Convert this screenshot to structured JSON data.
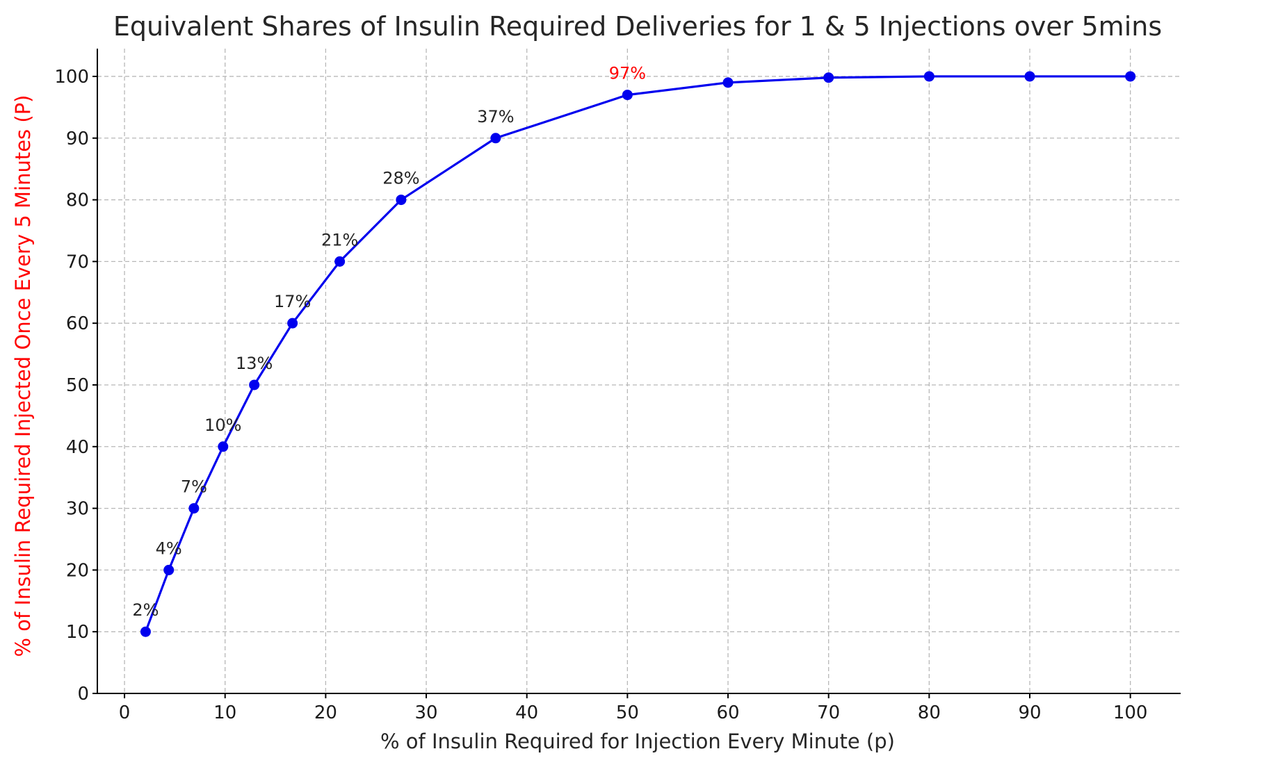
{
  "chart_data": {
    "type": "line",
    "title": "Equivalent Shares of Insulin Required Deliveries for 1 & 5 Injections over 5mins",
    "xlabel": "% of Insulin Required for Injection Every Minute (p)",
    "ylabel": "% of Insulin Required Injected Once Every 5 Minutes (P)",
    "xlim": [
      -2.7,
      105
    ],
    "ylim": [
      0,
      104.5
    ],
    "xticks": [
      0,
      10,
      20,
      30,
      40,
      50,
      60,
      70,
      80,
      90,
      100
    ],
    "yticks": [
      0,
      10,
      20,
      30,
      40,
      50,
      60,
      70,
      80,
      90,
      100
    ],
    "grid": true,
    "series": [
      {
        "color": "#0000ee",
        "x": [
          2.1,
          4.4,
          6.9,
          9.8,
          12.9,
          16.7,
          21.4,
          27.5,
          36.9,
          50,
          60,
          70,
          80,
          90,
          100
        ],
        "y": [
          10,
          20,
          30,
          40,
          50,
          60,
          70,
          80,
          90,
          97,
          99,
          99.8,
          100,
          100,
          100
        ]
      }
    ],
    "annotations": [
      {
        "text": "2%",
        "x": 2.1,
        "y": 10,
        "color": "#262626"
      },
      {
        "text": "4%",
        "x": 4.4,
        "y": 20,
        "color": "#262626"
      },
      {
        "text": "7%",
        "x": 6.9,
        "y": 30,
        "color": "#262626"
      },
      {
        "text": "10%",
        "x": 9.8,
        "y": 40,
        "color": "#262626"
      },
      {
        "text": "13%",
        "x": 12.9,
        "y": 50,
        "color": "#262626"
      },
      {
        "text": "17%",
        "x": 16.7,
        "y": 60,
        "color": "#262626"
      },
      {
        "text": "21%",
        "x": 21.4,
        "y": 70,
        "color": "#262626"
      },
      {
        "text": "28%",
        "x": 27.5,
        "y": 80,
        "color": "#262626"
      },
      {
        "text": "37%",
        "x": 36.9,
        "y": 90,
        "color": "#262626"
      },
      {
        "text": "97%",
        "x": 50,
        "y": 97,
        "color": "#ff0000"
      }
    ],
    "colors": {
      "line": "#0000ee",
      "ylabel": "#ff0000",
      "xlabel": "#262626",
      "title": "#262626"
    }
  }
}
